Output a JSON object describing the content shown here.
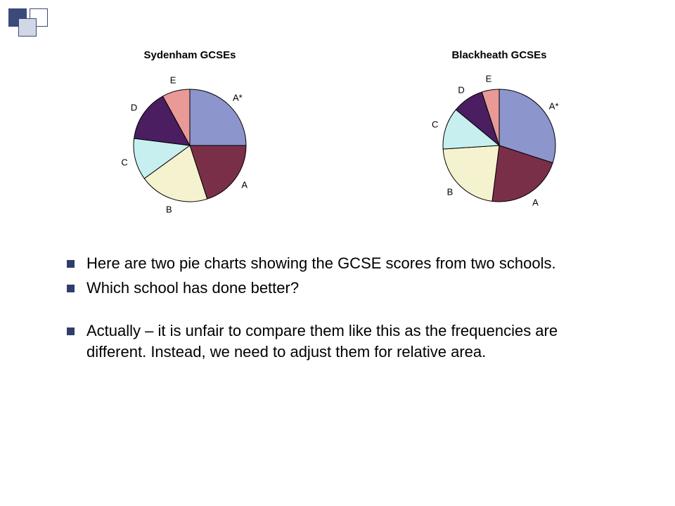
{
  "decor_colors": {
    "fill1": "#3a4a7a",
    "fill2": "#ffffff",
    "fill3": "#d2d7e8",
    "border": "#3a4a7a"
  },
  "charts": [
    {
      "title": "Sydenham GCSEs",
      "type": "pie",
      "radius": 80,
      "border_color": "#000000",
      "background_color": "#ffffff",
      "title_fontsize": 15,
      "title_color": "#000000",
      "label_fontsize": 13,
      "label_color": "#000000",
      "slices": [
        {
          "label": "A*",
          "value": 25,
          "color": "#8c95cc"
        },
        {
          "label": "A",
          "value": 20,
          "color": "#7a2f48"
        },
        {
          "label": "B",
          "value": 20,
          "color": "#f5f2cf"
        },
        {
          "label": "C",
          "value": 12,
          "color": "#c7efef"
        },
        {
          "label": "D",
          "value": 15,
          "color": "#4a1e60"
        },
        {
          "label": "E",
          "value": 8,
          "color": "#e99a96"
        }
      ]
    },
    {
      "title": "Blackheath GCSEs",
      "type": "pie",
      "radius": 80,
      "border_color": "#000000",
      "background_color": "#ffffff",
      "title_fontsize": 15,
      "title_color": "#000000",
      "label_fontsize": 13,
      "label_color": "#000000",
      "slices": [
        {
          "label": "A*",
          "value": 30,
          "color": "#8c95cc"
        },
        {
          "label": "A",
          "value": 22,
          "color": "#7a2f48"
        },
        {
          "label": "B",
          "value": 22,
          "color": "#f5f2cf"
        },
        {
          "label": "C",
          "value": 12,
          "color": "#c7efef"
        },
        {
          "label": "D",
          "value": 9,
          "color": "#4a1e60"
        },
        {
          "label": "E",
          "value": 5,
          "color": "#e99a96"
        }
      ]
    }
  ],
  "bullets": [
    "Here are two pie charts showing the GCSE scores from two schools.",
    "Which school has done better?",
    "Actually – it is unfair to compare them like this as the frequencies are different. Instead, we need to adjust them for relative area."
  ],
  "bullet_style": {
    "marker_color": "#2f3d6b",
    "fontsize": 22,
    "text_color": "#000000"
  }
}
